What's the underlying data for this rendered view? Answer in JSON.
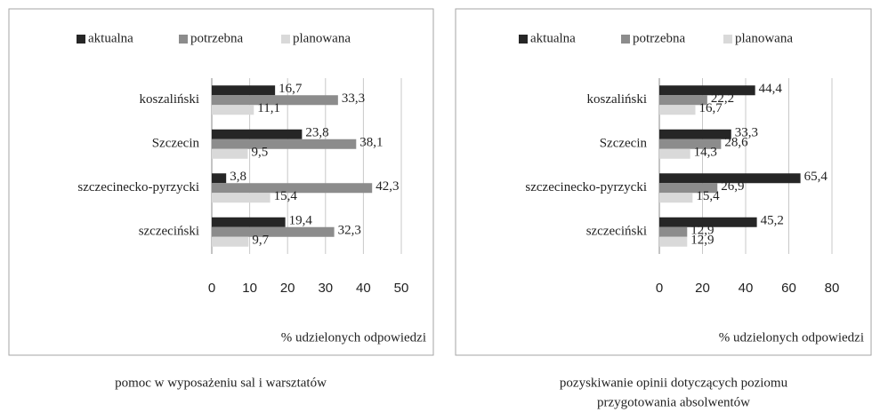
{
  "chart_data": [
    {
      "type": "hbar",
      "categories": [
        "koszaliński",
        "Szczecin",
        "szczecinecko-pyrzycki",
        "szczeciński"
      ],
      "series": [
        {
          "name": "aktualna",
          "color": "#262626",
          "values": [
            16.7,
            23.8,
            3.8,
            19.4
          ],
          "value_labels": [
            "16,7",
            "23,8",
            "3,8",
            "19,4"
          ]
        },
        {
          "name": "potrzebna",
          "color": "#8c8c8c",
          "values": [
            33.3,
            38.1,
            42.3,
            32.3
          ],
          "value_labels": [
            "33,3",
            "38,1",
            "42,3",
            "32,3"
          ]
        },
        {
          "name": "planowana",
          "color": "#d9d9d9",
          "values": [
            11.1,
            9.5,
            15.4,
            9.7
          ],
          "value_labels": [
            "11,1",
            "9,5",
            "15,4",
            "9,7"
          ]
        }
      ],
      "xlim": [
        0,
        50
      ],
      "xticks": [
        0,
        10,
        20,
        30,
        40,
        50
      ],
      "grid": true,
      "xlabel": "% udzielonych odpowiedzi",
      "legend": "top",
      "caption": [
        "pomoc w wyposażeniu sal i warsztatów"
      ]
    },
    {
      "type": "hbar",
      "categories": [
        "koszaliński",
        "Szczecin",
        "szczecinecko-pyrzycki",
        "szczeciński"
      ],
      "series": [
        {
          "name": "aktualna",
          "color": "#262626",
          "values": [
            44.4,
            33.3,
            65.4,
            45.2
          ],
          "value_labels": [
            "44,4",
            "33,3",
            "65,4",
            "45,2"
          ]
        },
        {
          "name": "potrzebna",
          "color": "#8c8c8c",
          "values": [
            22.2,
            28.6,
            26.9,
            12.9
          ],
          "value_labels": [
            "22,2",
            "28,6",
            "26,9",
            "12,9"
          ]
        },
        {
          "name": "planowana",
          "color": "#d9d9d9",
          "values": [
            16.7,
            14.3,
            15.4,
            12.9
          ],
          "value_labels": [
            "16,7",
            "14,3",
            "15,4",
            "12,9"
          ]
        }
      ],
      "xlim": [
        0,
        80
      ],
      "xticks": [
        0,
        20,
        40,
        60,
        80
      ],
      "grid": true,
      "xlabel": "% udzielonych odpowiedzi",
      "legend": "top",
      "caption": [
        "pozyskiwanie opinii dotyczących poziomu",
        "przygotowania absolwentów"
      ]
    }
  ]
}
